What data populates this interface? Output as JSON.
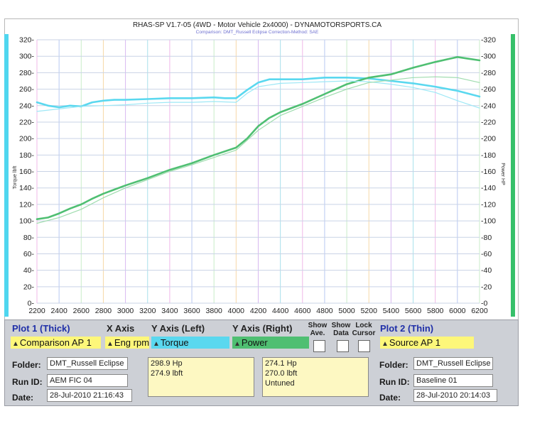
{
  "chart_data": {
    "type": "line",
    "title": "RHAS-SP V1.7-05   (4WD - Motor Vehicle 2x4000) - DYNAMOTORSPORTS.CA",
    "subtitle": "Comparison: DMT_Russell Eclipse     Correction-Method: SAE",
    "xlabel": "",
    "ylabel_left": "Torque lbft",
    "ylabel_right": "Power HP",
    "xlim": [
      2200,
      6200
    ],
    "ylim": [
      0,
      320
    ],
    "x_ticks": [
      "2200",
      "2400",
      "2600",
      "2800",
      "3000",
      "3200",
      "3400",
      "3600",
      "3800",
      "4000",
      "4200",
      "4400",
      "4600",
      "4800",
      "5000",
      "5200",
      "5400",
      "5600",
      "5800",
      "6000",
      "6200"
    ],
    "y_ticks_left": [
      "0",
      "20",
      "40",
      "60",
      "80",
      "100",
      "120",
      "140",
      "160",
      "180",
      "200",
      "220",
      "240",
      "260",
      "280",
      "300",
      "320"
    ],
    "y_ticks_right": [
      "0",
      "20",
      "40",
      "60",
      "80",
      "100",
      "120",
      "140",
      "160",
      "180",
      "200",
      "220",
      "240",
      "260",
      "280",
      "300",
      "320"
    ],
    "grid": true,
    "series": [
      {
        "name": "Torque",
        "color": "#5ad8ef",
        "width": "thick",
        "x": [
          2200,
          2300,
          2400,
          2500,
          2600,
          2700,
          2800,
          2900,
          3000,
          3200,
          3400,
          3600,
          3800,
          3900,
          4000,
          4100,
          4200,
          4300,
          4400,
          4600,
          4800,
          5000,
          5200,
          5400,
          5600,
          5800,
          6000,
          6200
        ],
        "y": [
          244,
          240,
          238,
          240,
          239,
          244,
          246,
          247,
          247,
          248,
          249,
          249,
          250,
          249,
          249,
          259,
          268,
          272,
          272,
          272,
          274,
          274,
          273,
          270,
          267,
          263,
          258,
          251
        ]
      },
      {
        "name": "Power",
        "color": "#4fbf72",
        "width": "thick",
        "x": [
          2200,
          2300,
          2400,
          2500,
          2600,
          2700,
          2800,
          2900,
          3000,
          3200,
          3400,
          3600,
          3800,
          4000,
          4100,
          4200,
          4300,
          4400,
          4600,
          4800,
          5000,
          5200,
          5400,
          5600,
          5800,
          6000,
          6100,
          6200
        ],
        "y": [
          102,
          104,
          109,
          115,
          120,
          127,
          133,
          138,
          143,
          152,
          162,
          170,
          180,
          189,
          200,
          215,
          225,
          232,
          242,
          254,
          266,
          274,
          278,
          286,
          293,
          299,
          297,
          295
        ]
      },
      {
        "name": "Torque",
        "color": "#9ee8f6",
        "width": "thin",
        "x": [
          2200,
          2400,
          2600,
          2800,
          3000,
          3200,
          3400,
          3600,
          3800,
          4000,
          4100,
          4200,
          4400,
          4600,
          4800,
          5000,
          5200,
          5400,
          5600,
          5800,
          6000,
          6200
        ],
        "y": [
          233,
          236,
          239,
          240,
          241,
          243,
          244,
          244,
          245,
          244,
          255,
          263,
          267,
          268,
          269,
          270,
          269,
          266,
          262,
          256,
          246,
          237
        ]
      },
      {
        "name": "Power",
        "color": "#9fdcae",
        "width": "thin",
        "x": [
          2200,
          2400,
          2600,
          2800,
          3000,
          3200,
          3400,
          3600,
          3800,
          4000,
          4200,
          4400,
          4600,
          4800,
          5000,
          5200,
          5400,
          5600,
          5800,
          6000,
          6200
        ],
        "y": [
          97,
          104,
          114,
          128,
          140,
          150,
          160,
          168,
          177,
          186,
          210,
          228,
          239,
          250,
          260,
          268,
          271,
          274,
          275,
          274,
          268
        ]
      }
    ]
  },
  "panel": {
    "plot1_title": "Plot 1 (Thick)",
    "x_axis_title": "X Axis",
    "y_left_title": "Y Axis (Left)",
    "y_right_title": "Y Axis (Right)",
    "show_ave": "Show\nAve.",
    "show_data": "Show\nData",
    "lock_cursor": "Lock\nCursor",
    "plot2_title": "Plot 2 (Thin)",
    "plot1_select": "Comparison AP 1",
    "x_axis_select": "Eng rpm",
    "y_left_select": "Torque",
    "y_right_select": "Power",
    "plot2_select": "Source AP 1",
    "folder_label": "Folder:",
    "runid_label": "Run ID:",
    "date_label": "Date:",
    "plot1_folder": "DMT_Russell Eclipse",
    "plot1_runid": "AEM FIC 04",
    "plot1_date": "28-Jul-2010  21:16:43",
    "plot1_values": [
      "298.9 Hp",
      "274.9 lbft"
    ],
    "plot2_values": [
      "274.1 Hp",
      "270.0 lbft",
      "Untuned"
    ],
    "plot2_folder": "DMT_Russell Eclipse",
    "plot2_runid": "Baseline 01",
    "plot2_date": "28-Jul-2010  20:14:03",
    "colors": {
      "plot1": "#fdf77a",
      "y_left": "#5ad8ef",
      "y_right": "#4fbf72",
      "plot2": "#fdf77a"
    }
  }
}
